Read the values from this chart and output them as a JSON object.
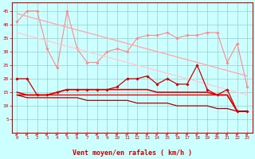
{
  "x": [
    0,
    1,
    2,
    3,
    4,
    5,
    6,
    7,
    8,
    9,
    10,
    11,
    12,
    13,
    14,
    15,
    16,
    17,
    18,
    19,
    20,
    21,
    22,
    23
  ],
  "series": [
    {
      "name": "zigzag_light_diamonds",
      "color": "#ff8888",
      "lw": 0.8,
      "marker": "D",
      "ms": 1.8,
      "y": [
        41,
        45,
        45,
        31,
        24,
        45,
        31,
        26,
        26,
        30,
        31,
        30,
        35,
        36,
        36,
        37,
        35,
        36,
        36,
        37,
        37,
        26,
        33,
        17
      ]
    },
    {
      "name": "diagonal_upper",
      "color": "#ffaaaa",
      "lw": 1.0,
      "marker": null,
      "ms": 0,
      "y": [
        44,
        43,
        42,
        41,
        40,
        39,
        38,
        37,
        36,
        35,
        34,
        33,
        32,
        31,
        30,
        29,
        28,
        27,
        26,
        25,
        24,
        23,
        22,
        21
      ]
    },
    {
      "name": "diagonal_lower",
      "color": "#ffcccc",
      "lw": 1.0,
      "marker": null,
      "ms": 0,
      "y": [
        37,
        36,
        35,
        34,
        33,
        32,
        31,
        30,
        29,
        28,
        27,
        26,
        25,
        24,
        23,
        22,
        21,
        20,
        19,
        18,
        17,
        16,
        15,
        14
      ]
    },
    {
      "name": "main_zigzag_red",
      "color": "#cc0000",
      "lw": 0.9,
      "marker": "D",
      "ms": 1.8,
      "y": [
        20,
        20,
        14,
        14,
        15,
        16,
        16,
        16,
        16,
        16,
        17,
        20,
        20,
        21,
        18,
        20,
        18,
        18,
        25,
        16,
        14,
        16,
        8,
        8
      ]
    },
    {
      "name": "flat_upper_red",
      "color": "#dd0000",
      "lw": 1.2,
      "marker": null,
      "ms": 0,
      "y": [
        15,
        14,
        14,
        14,
        15,
        16,
        16,
        16,
        16,
        16,
        16,
        16,
        16,
        16,
        15,
        15,
        15,
        15,
        15,
        15,
        14,
        14,
        8,
        8
      ]
    },
    {
      "name": "flat_mid_red",
      "color": "#ee0000",
      "lw": 1.0,
      "marker": null,
      "ms": 0,
      "y": [
        14,
        14,
        14,
        14,
        14,
        14,
        14,
        14,
        14,
        14,
        14,
        14,
        14,
        14,
        14,
        14,
        14,
        14,
        14,
        14,
        14,
        14,
        8,
        8
      ]
    },
    {
      "name": "declining_dark",
      "color": "#aa0000",
      "lw": 0.9,
      "marker": null,
      "ms": 0,
      "y": [
        14,
        13,
        13,
        13,
        13,
        13,
        13,
        12,
        12,
        12,
        12,
        12,
        11,
        11,
        11,
        11,
        10,
        10,
        10,
        10,
        9,
        9,
        8,
        8
      ]
    }
  ],
  "ylim": [
    0,
    48
  ],
  "yticks": [
    5,
    10,
    15,
    20,
    25,
    30,
    35,
    40,
    45
  ],
  "xlabel": "Vent moyen/en rafales ( km/h )",
  "bg_color": "#ccffff",
  "grid_color": "#99cccc",
  "tick_color": "#cc0000",
  "label_color": "#cc0000",
  "arrow_color": "#dd4444",
  "spine_color": "#cc0000"
}
